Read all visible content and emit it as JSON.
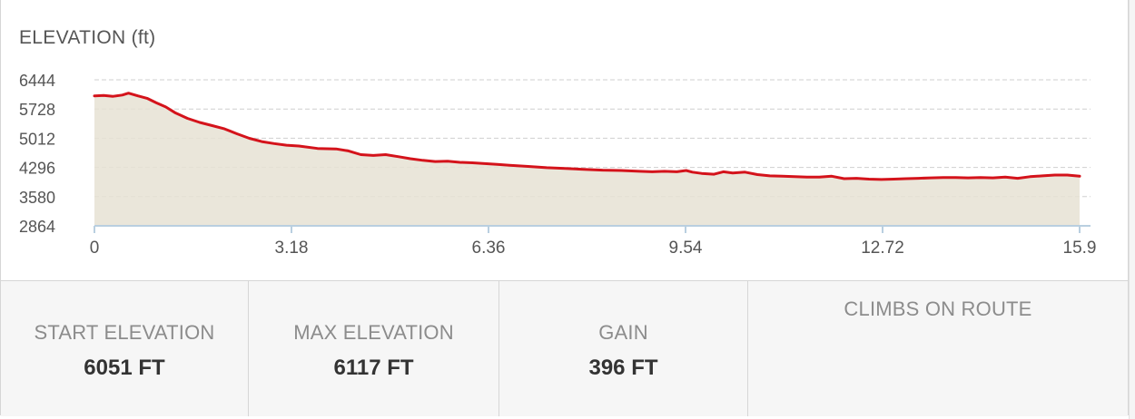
{
  "chart_data": {
    "type": "area",
    "title": "ELEVATION (ft)",
    "xlabel": "",
    "ylabel": "",
    "x_ticks": [
      "0",
      "3.18",
      "6.36",
      "9.54",
      "12.72",
      "15.9"
    ],
    "y_ticks": [
      "6444",
      "5728",
      "5012",
      "4296",
      "3580",
      "2864"
    ],
    "xlim": [
      0,
      15.9
    ],
    "ylim": [
      2864,
      6444
    ],
    "grid": "horizontal-dashed",
    "colors": {
      "line": "#d4131b",
      "fill": "#e6e2d4",
      "grid": "#cfcfcf",
      "axis": "#b9cfe0"
    },
    "series": [
      {
        "x": [
          0,
          0.15,
          0.3,
          0.45,
          0.55,
          0.7,
          0.85,
          1.0,
          1.15,
          1.3,
          1.5,
          1.7,
          1.9,
          2.1,
          2.3,
          2.5,
          2.7,
          2.9,
          3.1,
          3.3,
          3.6,
          3.9,
          4.1,
          4.3,
          4.5,
          4.7,
          4.9,
          5.1,
          5.3,
          5.5,
          5.7,
          5.9,
          6.1,
          6.3,
          6.5,
          6.7,
          7.0,
          7.3,
          7.6,
          7.9,
          8.2,
          8.5,
          8.8,
          9.0,
          9.2,
          9.4,
          9.55,
          9.65,
          9.8,
          10.0,
          10.15,
          10.3,
          10.5,
          10.7,
          10.9,
          11.1,
          11.3,
          11.5,
          11.7,
          11.9,
          12.1,
          12.3,
          12.5,
          12.7,
          12.9,
          13.1,
          13.3,
          13.5,
          13.7,
          13.9,
          14.1,
          14.3,
          14.5,
          14.7,
          14.9,
          15.1,
          15.3,
          15.5,
          15.7,
          15.9
        ],
        "y": [
          6051,
          6060,
          6040,
          6070,
          6117,
          6050,
          5990,
          5880,
          5780,
          5640,
          5500,
          5400,
          5320,
          5240,
          5120,
          5010,
          4930,
          4880,
          4840,
          4820,
          4760,
          4750,
          4700,
          4610,
          4590,
          4610,
          4560,
          4510,
          4470,
          4440,
          4450,
          4420,
          4410,
          4390,
          4370,
          4350,
          4320,
          4290,
          4270,
          4250,
          4230,
          4220,
          4200,
          4190,
          4200,
          4190,
          4220,
          4180,
          4150,
          4130,
          4190,
          4160,
          4180,
          4120,
          4090,
          4080,
          4070,
          4060,
          4060,
          4080,
          4020,
          4030,
          4010,
          4000,
          4010,
          4020,
          4030,
          4040,
          4050,
          4050,
          4040,
          4050,
          4040,
          4060,
          4030,
          4070,
          4090,
          4110,
          4110,
          4080
        ]
      }
    ]
  },
  "stats": [
    {
      "label": "START ELEVATION",
      "value": "6051 FT"
    },
    {
      "label": "MAX ELEVATION",
      "value": "6117 FT"
    },
    {
      "label": "GAIN",
      "value": "396 FT"
    }
  ],
  "climbs_label": "CLIMBS ON ROUTE"
}
